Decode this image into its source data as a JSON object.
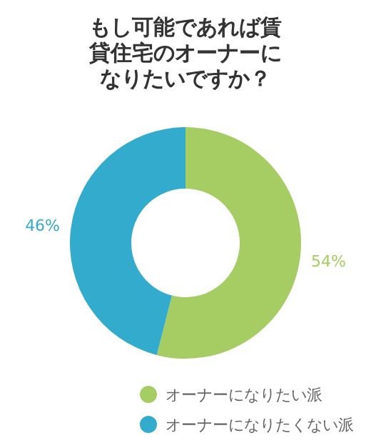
{
  "chart_data": {
    "type": "donut",
    "title": "もし可能であれば賃貸住宅のオーナーになりたいですか？",
    "categories": [
      "オーナーになりたい派",
      "オーナーになりたくない派"
    ],
    "values": [
      54,
      46
    ],
    "colors": [
      "#a6cd63",
      "#33abcc"
    ],
    "value_labels": [
      "54%",
      "46%"
    ],
    "legend": "bottom"
  }
}
